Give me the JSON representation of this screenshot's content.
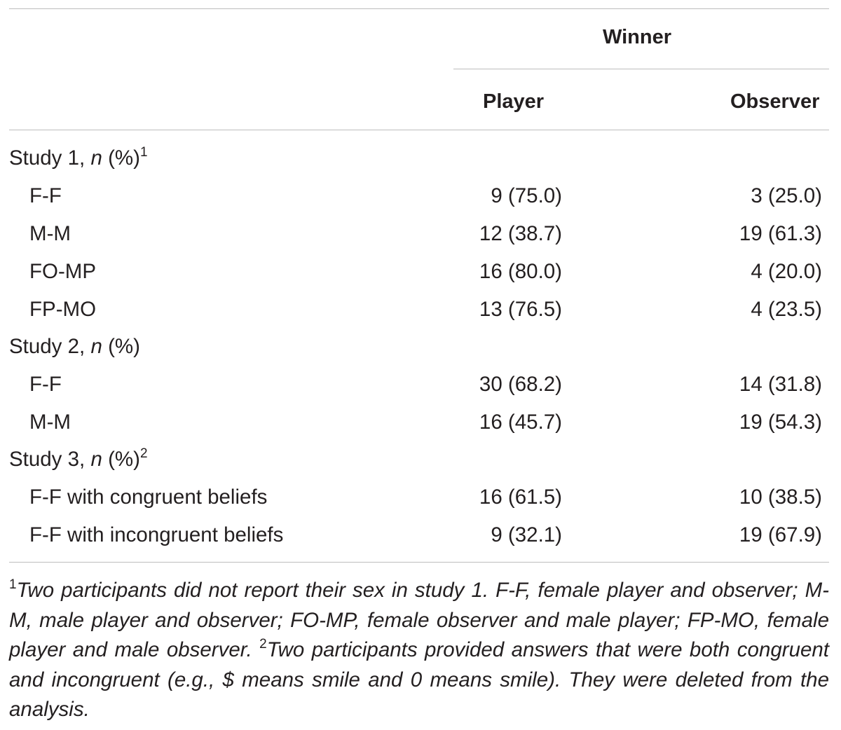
{
  "header": {
    "group": "Winner",
    "col_player": "Player",
    "col_observer": "Observer"
  },
  "rows": [
    {
      "label": "Study 1,",
      "n": "n",
      "pct": "(%)",
      "sup": "1"
    },
    {
      "label": "F-F",
      "player": "9 (75.0)",
      "observer": "3 (25.0)"
    },
    {
      "label": "M-M",
      "player": "12 (38.7)",
      "observer": "19 (61.3)"
    },
    {
      "label": "FO-MP",
      "player": "16 (80.0)",
      "observer": "4 (20.0)"
    },
    {
      "label": "FP-MO",
      "player": "13 (76.5)",
      "observer": "4 (23.5)"
    },
    {
      "label": "Study 2,",
      "n": "n",
      "pct": "(%)"
    },
    {
      "label": "F-F",
      "player": "30 (68.2)",
      "observer": "14 (31.8)"
    },
    {
      "label": "M-M",
      "player": "16 (45.7)",
      "observer": "19 (54.3)"
    },
    {
      "label": "Study 3,",
      "n": "n",
      "pct": "(%)",
      "sup": "2"
    },
    {
      "label": "F-F with congruent beliefs",
      "player": "16 (61.5)",
      "observer": "10 (38.5)"
    },
    {
      "label": "F-F with incongruent beliefs",
      "player": "9 (32.1)",
      "observer": "19 (67.9)"
    }
  ],
  "footnote": {
    "sup1": "1",
    "text1": "Two participants did not report their sex in study 1. F-F, female player and observer; M-M, male player and observer; FO-MP, female observer and male player; FP-MO, female player and male observer.",
    "sup2": "2",
    "text2": "Two participants provided answers that were both congruent and incongruent (e.g., $ means smile and 0 means smile). They were deleted from the analysis."
  }
}
